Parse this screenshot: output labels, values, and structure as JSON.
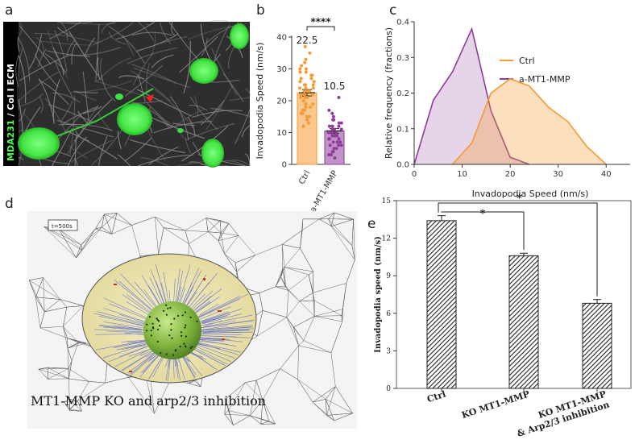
{
  "panels": {
    "a": {
      "letter": "a",
      "side_label_green": "MDA231",
      "side_label_sep": " / ",
      "side_label_white": "Col I ECM"
    },
    "b": {
      "letter": "b"
    },
    "c": {
      "letter": "c"
    },
    "d": {
      "letter": "d",
      "timestamp": "t=500s",
      "caption": "MT1-MMP KO and arp2/3 inhibition"
    },
    "e": {
      "letter": "e"
    }
  },
  "colors": {
    "orange": "#F59A32",
    "purple": "#8E3C9A",
    "green": "#4CFF4C",
    "hatch": "#333333"
  },
  "chart_data": [
    {
      "id": "b",
      "type": "bar",
      "title": "",
      "ylabel": "Invadopodia Speed (nm/s)",
      "xlabel": "",
      "ylim": [
        0,
        40
      ],
      "yticks": [
        0,
        10,
        20,
        30,
        40
      ],
      "categories": [
        "Ctrl",
        "a-MT1-MMP"
      ],
      "values": [
        22.5,
        10.5
      ],
      "value_labels": [
        "22.5",
        "10.5"
      ],
      "errors": [
        1.0,
        0.8
      ],
      "significance": "****",
      "points": [
        [
          37,
          35,
          33,
          32,
          31,
          30,
          30,
          29,
          29,
          28,
          28,
          27,
          27,
          26,
          26,
          25,
          25,
          25,
          24,
          24,
          24,
          23,
          23,
          23,
          22,
          22,
          22,
          21,
          21,
          21,
          20,
          20,
          20,
          19,
          19,
          18,
          18,
          17,
          17,
          16,
          16,
          15,
          15,
          14,
          13,
          12
        ],
        [
          21,
          17,
          16,
          15,
          14,
          14,
          13,
          13,
          12,
          12,
          12,
          11,
          11,
          11,
          11,
          10,
          10,
          10,
          10,
          9,
          9,
          9,
          9,
          8,
          8,
          8,
          8,
          7,
          7,
          7,
          6,
          6,
          6,
          5,
          5,
          4,
          4,
          3,
          3,
          2
        ]
      ]
    },
    {
      "id": "c",
      "type": "area",
      "title": "",
      "xlabel": "Invadopodia Speed (nm/s)",
      "ylabel": "Relative frequency (fractions)",
      "xlim": [
        0,
        45
      ],
      "ylim": [
        0,
        0.4
      ],
      "xticks": [
        0,
        10,
        20,
        30,
        40
      ],
      "yticks": [
        0.0,
        0.1,
        0.2,
        0.3,
        0.4
      ],
      "ytick_labels": [
        "0.0",
        "0.1",
        "0.2",
        "0.3",
        "0.4"
      ],
      "legend_position": "top-right",
      "series": [
        {
          "name": "Ctrl",
          "x": [
            8,
            12,
            16,
            20,
            24,
            28,
            32,
            36,
            40
          ],
          "y": [
            0,
            0.06,
            0.2,
            0.24,
            0.22,
            0.16,
            0.12,
            0.05,
            0
          ]
        },
        {
          "name": "a-MT1-MMP",
          "x": [
            0,
            4,
            8,
            12,
            16,
            20,
            24
          ],
          "y": [
            0,
            0.18,
            0.26,
            0.38,
            0.15,
            0.02,
            0
          ]
        }
      ]
    },
    {
      "id": "e",
      "type": "bar",
      "title": "",
      "ylabel": "Invadopodia speed (nm/s)",
      "xlabel": "",
      "ylim": [
        0,
        15
      ],
      "yticks": [
        0,
        3,
        6,
        9,
        12,
        15
      ],
      "categories": [
        "Ctrl",
        "KO MT1-MMP",
        "KO MT1-MMP & Arp2/3 inhibition"
      ],
      "category_lines": [
        [
          "Ctrl"
        ],
        [
          "KO MT1-MMP"
        ],
        [
          "KO MT1-MMP",
          "& Arp2/3 inhibition"
        ]
      ],
      "values": [
        13.4,
        10.6,
        6.8
      ],
      "errors": [
        0.4,
        0.2,
        0.3
      ],
      "significance": [
        {
          "from": "Ctrl",
          "to": "KO MT1-MMP",
          "label": "*"
        },
        {
          "from": "Ctrl",
          "to": "KO MT1-MMP & Arp2/3 inhibition",
          "label": "*"
        }
      ]
    }
  ]
}
